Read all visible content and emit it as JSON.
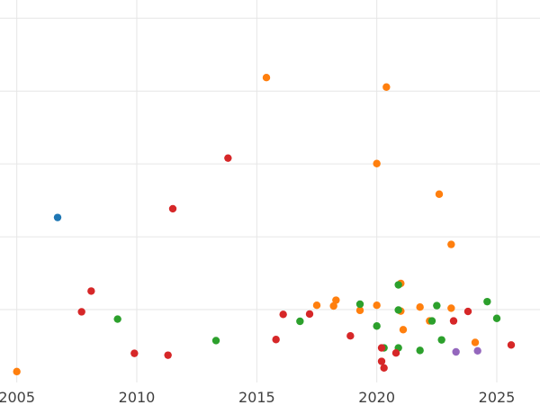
{
  "chart_data": {
    "type": "scatter",
    "title": "",
    "xlabel": "",
    "ylabel": "",
    "xlim": [
      2004.3,
      2026.8
    ],
    "ylim": [
      0,
      1.05
    ],
    "x_ticks": [
      2005,
      2010,
      2015,
      2020,
      2025
    ],
    "x_tick_labels": [
      "2005",
      "2010",
      "2015",
      "2020",
      "2025"
    ],
    "y_gridlines": [
      0.2,
      0.4,
      0.6,
      0.8,
      1.0
    ],
    "grid": true,
    "colors": {
      "blue": "#1f77b4",
      "orange": "#ff7f0e",
      "green": "#2ca02c",
      "red": "#d62728",
      "purple": "#9467bd"
    },
    "series": [
      {
        "color": "#1f77b4",
        "points": [
          [
            2006.7,
            0.453
          ]
        ]
      },
      {
        "color": "#ff7f0e",
        "points": [
          [
            2005.0,
            0.03
          ],
          [
            2015.4,
            0.837
          ],
          [
            2017.5,
            0.212
          ],
          [
            2018.2,
            0.21
          ],
          [
            2018.3,
            0.226
          ],
          [
            2019.3,
            0.198
          ],
          [
            2020.0,
            0.212
          ],
          [
            2020.0,
            0.601
          ],
          [
            2020.4,
            0.811
          ],
          [
            2021.0,
            0.272
          ],
          [
            2021.0,
            0.196
          ],
          [
            2021.1,
            0.145
          ],
          [
            2021.8,
            0.207
          ],
          [
            2022.2,
            0.169
          ],
          [
            2022.6,
            0.517
          ],
          [
            2023.1,
            0.379
          ],
          [
            2023.1,
            0.204
          ],
          [
            2024.1,
            0.11
          ]
        ]
      },
      {
        "color": "#2ca02c",
        "points": [
          [
            2009.2,
            0.174
          ],
          [
            2013.3,
            0.115
          ],
          [
            2016.8,
            0.168
          ],
          [
            2019.3,
            0.215
          ],
          [
            2020.0,
            0.155
          ],
          [
            2020.3,
            0.095
          ],
          [
            2020.9,
            0.268
          ],
          [
            2020.9,
            0.199
          ],
          [
            2020.9,
            0.095
          ],
          [
            2021.8,
            0.088
          ],
          [
            2022.3,
            0.169
          ],
          [
            2022.5,
            0.211
          ],
          [
            2022.7,
            0.117
          ],
          [
            2024.6,
            0.222
          ],
          [
            2025.0,
            0.176
          ]
        ]
      },
      {
        "color": "#d62728",
        "points": [
          [
            2007.7,
            0.194
          ],
          [
            2008.1,
            0.251
          ],
          [
            2009.9,
            0.08
          ],
          [
            2011.3,
            0.075
          ],
          [
            2011.5,
            0.477
          ],
          [
            2013.8,
            0.616
          ],
          [
            2015.8,
            0.118
          ],
          [
            2016.1,
            0.187
          ],
          [
            2017.2,
            0.188
          ],
          [
            2018.9,
            0.128
          ],
          [
            2020.2,
            0.095
          ],
          [
            2020.2,
            0.058
          ],
          [
            2020.3,
            0.04
          ],
          [
            2020.8,
            0.081
          ],
          [
            2023.2,
            0.169
          ],
          [
            2023.8,
            0.195
          ],
          [
            2025.6,
            0.103
          ]
        ]
      },
      {
        "color": "#9467bd",
        "points": [
          [
            2023.3,
            0.084
          ],
          [
            2024.2,
            0.087
          ]
        ]
      }
    ]
  }
}
